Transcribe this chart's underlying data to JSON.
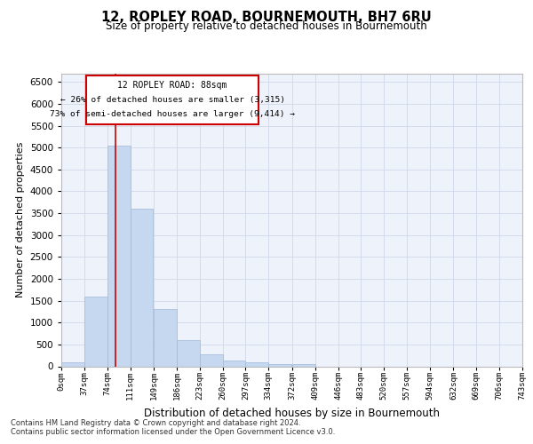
{
  "title": "12, ROPLEY ROAD, BOURNEMOUTH, BH7 6RU",
  "subtitle": "Size of property relative to detached houses in Bournemouth",
  "xlabel": "Distribution of detached houses by size in Bournemouth",
  "ylabel": "Number of detached properties",
  "footer_line1": "Contains HM Land Registry data © Crown copyright and database right 2024.",
  "footer_line2": "Contains public sector information licensed under the Open Government Licence v3.0.",
  "annotation_title": "12 ROPLEY ROAD: 88sqm",
  "annotation_line1": "← 26% of detached houses are smaller (3,315)",
  "annotation_line2": "73% of semi-detached houses are larger (9,414) →",
  "property_sqm": 88,
  "bar_color": "#c5d8f0",
  "bar_edge_color": "#a0b8d8",
  "redline_color": "#cc0000",
  "annotation_box_color": "#cc0000",
  "grid_color": "#d0d8e8",
  "background_color": "#eef2fb",
  "bin_edges": [
    0,
    37,
    74,
    111,
    149,
    186,
    223,
    260,
    297,
    334,
    372,
    409,
    446,
    483,
    520,
    557,
    594,
    632,
    669,
    706,
    743
  ],
  "bin_labels": [
    "0sqm",
    "37sqm",
    "74sqm",
    "111sqm",
    "149sqm",
    "186sqm",
    "223sqm",
    "260sqm",
    "297sqm",
    "334sqm",
    "372sqm",
    "409sqm",
    "446sqm",
    "483sqm",
    "520sqm",
    "557sqm",
    "594sqm",
    "632sqm",
    "669sqm",
    "706sqm",
    "743sqm"
  ],
  "bar_heights": [
    100,
    1600,
    5050,
    3600,
    1300,
    600,
    270,
    130,
    100,
    55,
    55,
    0,
    0,
    0,
    0,
    0,
    0,
    0,
    0,
    0
  ],
  "ylim": [
    0,
    6700
  ],
  "yticks": [
    0,
    500,
    1000,
    1500,
    2000,
    2500,
    3000,
    3500,
    4000,
    4500,
    5000,
    5500,
    6000,
    6500
  ]
}
